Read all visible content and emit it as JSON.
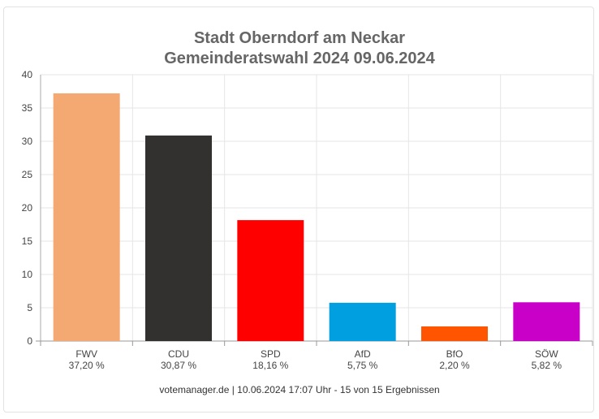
{
  "chart_data": {
    "type": "bar",
    "title": "Stadt Oberndorf am Neckar",
    "subtitle": "Gemeinderatswahl 2024 09.06.2024",
    "categories": [
      "FWV",
      "CDU",
      "SPD",
      "AfD",
      "BfO",
      "SÖW"
    ],
    "values": [
      37.2,
      30.87,
      18.16,
      5.75,
      2.2,
      5.82
    ],
    "value_labels": [
      "37,20 %",
      "30,87 %",
      "18,16 %",
      "5,75 %",
      "2,20 %",
      "5,82 %"
    ],
    "colors": [
      "#F4A972",
      "#333130",
      "#FF0000",
      "#009FE0",
      "#FF5500",
      "#C800C8"
    ],
    "ylim": [
      0,
      40
    ],
    "yticks": [
      0,
      5,
      10,
      15,
      20,
      25,
      30,
      35,
      40
    ],
    "grid": true,
    "xlabel": "",
    "ylabel": ""
  },
  "footer": "votemanager.de | 10.06.2024 17:07 Uhr - 15 von 15 Ergebnissen"
}
